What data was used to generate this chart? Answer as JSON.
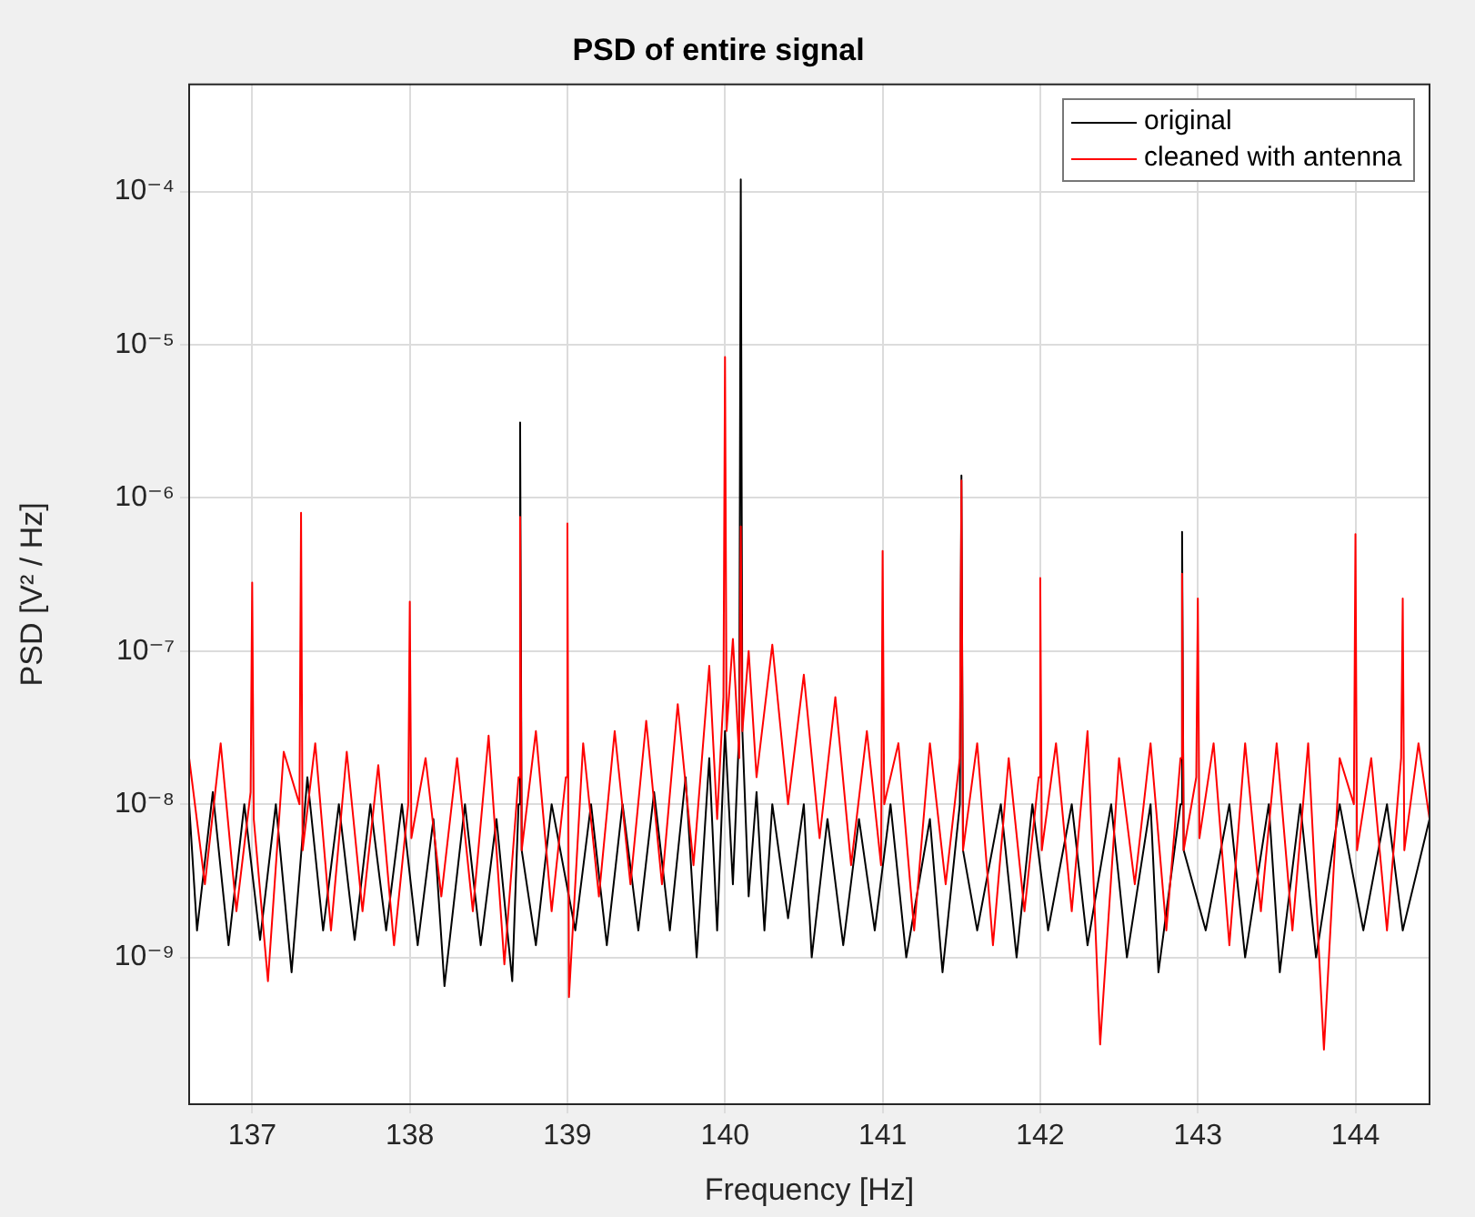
{
  "chart_data": {
    "type": "line",
    "title": "PSD of entire signal",
    "xlabel": "Frequency [Hz]",
    "ylabel": "PSD [V² / Hz]",
    "log": "y",
    "grid": true,
    "legend": "top right",
    "xlim": [
      136.6,
      144.47
    ],
    "xticks": [
      137,
      138,
      139,
      140,
      141,
      142,
      143,
      144
    ],
    "ylim": [
      1.1e-10,
      0.0005
    ],
    "yticks": [
      {
        "value": 1e-09,
        "label": "10⁻⁹"
      },
      {
        "value": 1e-08,
        "label": "10⁻⁸"
      },
      {
        "value": 1e-07,
        "label": "10⁻⁷"
      },
      {
        "value": 1e-06,
        "label": "10⁻⁶"
      },
      {
        "value": 1e-05,
        "label": "10⁻⁵"
      },
      {
        "value": 0.0001,
        "label": "10⁻⁴"
      }
    ],
    "series": [
      {
        "name": "original",
        "color": "#000000",
        "x": [
          136.6,
          136.65,
          136.75,
          136.85,
          136.95,
          137.05,
          137.15,
          137.25,
          137.35,
          137.45,
          137.55,
          137.65,
          137.75,
          137.85,
          137.95,
          138.05,
          138.15,
          138.22,
          138.35,
          138.45,
          138.55,
          138.65,
          138.69,
          138.7,
          138.71,
          138.8,
          138.9,
          139.05,
          139.15,
          139.25,
          139.35,
          139.45,
          139.55,
          139.65,
          139.75,
          139.82,
          139.9,
          139.95,
          140.0,
          140.05,
          140.09,
          140.1,
          140.11,
          140.15,
          140.2,
          140.25,
          140.3,
          140.4,
          140.5,
          140.55,
          140.65,
          140.75,
          140.85,
          140.95,
          141.05,
          141.15,
          141.3,
          141.38,
          141.49,
          141.5,
          141.51,
          141.6,
          141.75,
          141.85,
          141.95,
          142.05,
          142.2,
          142.3,
          142.45,
          142.55,
          142.7,
          142.75,
          142.89,
          142.9,
          142.91,
          143.05,
          143.2,
          143.3,
          143.45,
          143.52,
          143.65,
          143.75,
          143.9,
          144.05,
          144.2,
          144.3,
          144.47
        ],
        "values": [
          1e-08,
          1.5e-09,
          1.2e-08,
          1.2e-09,
          1e-08,
          1.3e-09,
          1e-08,
          8e-10,
          1.5e-08,
          1.5e-09,
          1e-08,
          1.3e-09,
          1e-08,
          1.5e-09,
          1e-08,
          1.2e-09,
          8e-09,
          6.5e-10,
          1e-08,
          1.2e-09,
          8e-09,
          7e-10,
          1e-08,
          3.1e-06,
          5e-09,
          1.2e-09,
          1e-08,
          1.5e-09,
          1e-08,
          1.2e-09,
          1e-08,
          1.5e-09,
          1.2e-08,
          1.5e-09,
          1.5e-08,
          1e-09,
          2e-08,
          1.5e-09,
          3e-08,
          3e-09,
          3e-08,
          0.00012,
          3e-08,
          2.5e-09,
          1.2e-08,
          1.5e-09,
          1e-08,
          1.8e-09,
          1e-08,
          1e-09,
          8e-09,
          1.2e-09,
          8e-09,
          1.5e-09,
          1e-08,
          1e-09,
          8e-09,
          8e-10,
          1e-08,
          1.4e-06,
          5e-09,
          1.5e-09,
          1e-08,
          1e-09,
          1e-08,
          1.5e-09,
          1e-08,
          1.2e-09,
          1e-08,
          1e-09,
          1e-08,
          8e-10,
          1e-08,
          6e-07,
          5e-09,
          1.5e-09,
          1e-08,
          1e-09,
          1e-08,
          8e-10,
          1e-08,
          1e-09,
          1e-08,
          1.5e-09,
          1e-08,
          1.5e-09,
          8e-09
        ]
      },
      {
        "name": "cleaned with antenna",
        "color": "#ff0000",
        "x": [
          136.6,
          136.7,
          136.8,
          136.9,
          136.99,
          137.0,
          137.01,
          137.1,
          137.2,
          137.3,
          137.31,
          137.32,
          137.4,
          137.5,
          137.6,
          137.7,
          137.8,
          137.9,
          137.99,
          138.0,
          138.01,
          138.1,
          138.2,
          138.3,
          138.4,
          138.5,
          138.6,
          138.69,
          138.7,
          138.71,
          138.8,
          138.9,
          138.99,
          139.0,
          139.01,
          139.1,
          139.2,
          139.3,
          139.4,
          139.5,
          139.6,
          139.7,
          139.8,
          139.9,
          139.95,
          139.99,
          140.0,
          140.01,
          140.05,
          140.09,
          140.1,
          140.11,
          140.15,
          140.2,
          140.3,
          140.4,
          140.5,
          140.6,
          140.7,
          140.8,
          140.9,
          140.99,
          141.0,
          141.01,
          141.1,
          141.2,
          141.3,
          141.4,
          141.49,
          141.5,
          141.51,
          141.6,
          141.7,
          141.8,
          141.9,
          141.99,
          142.0,
          142.01,
          142.1,
          142.2,
          142.3,
          142.38,
          142.5,
          142.6,
          142.7,
          142.8,
          142.89,
          142.9,
          142.91,
          142.99,
          143.0,
          143.01,
          143.1,
          143.2,
          143.3,
          143.4,
          143.5,
          143.6,
          143.7,
          143.8,
          143.9,
          143.99,
          144.0,
          144.01,
          144.1,
          144.2,
          144.29,
          144.3,
          144.31,
          144.4,
          144.47
        ],
        "values": [
          2e-08,
          3e-09,
          2.5e-08,
          2e-09,
          1.2e-08,
          2.8e-07,
          8e-09,
          7e-10,
          2.2e-08,
          1e-08,
          8e-07,
          5e-09,
          2.5e-08,
          1.5e-09,
          2.2e-08,
          2e-09,
          1.8e-08,
          1.2e-09,
          1e-08,
          2.1e-07,
          6e-09,
          2e-08,
          2.5e-09,
          2e-08,
          2e-09,
          2.8e-08,
          9e-10,
          1.5e-08,
          7.5e-07,
          5e-09,
          3e-08,
          2e-09,
          1.5e-08,
          6.8e-07,
          5.5e-10,
          2.5e-08,
          2.5e-09,
          3e-08,
          3e-09,
          3.5e-08,
          3e-09,
          4.5e-08,
          4e-09,
          8e-08,
          8e-09,
          5e-08,
          8.3e-06,
          3e-08,
          1.2e-07,
          2e-08,
          6.5e-07,
          3e-08,
          1e-07,
          1.5e-08,
          1.1e-07,
          1e-08,
          7e-08,
          6e-09,
          5e-08,
          4e-09,
          3e-08,
          4e-09,
          4.5e-07,
          1e-08,
          2.5e-08,
          1.5e-09,
          2.5e-08,
          3e-09,
          2e-08,
          1.3e-06,
          5e-09,
          2.5e-08,
          1.2e-09,
          2e-08,
          2e-09,
          1.5e-08,
          3e-07,
          5e-09,
          2.5e-08,
          2e-09,
          3e-08,
          2.7e-10,
          2e-08,
          3e-09,
          2.5e-08,
          1.5e-09,
          2e-08,
          3.2e-07,
          5e-09,
          1.5e-08,
          2.2e-07,
          6e-09,
          2.5e-08,
          1.2e-09,
          2.5e-08,
          2e-09,
          2.5e-08,
          1.5e-09,
          2.5e-08,
          2.5e-10,
          2e-08,
          1e-08,
          5.8e-07,
          5e-09,
          2e-08,
          1.5e-09,
          2e-08,
          2.2e-07,
          5e-09,
          2.5e-08,
          8e-09
        ]
      }
    ]
  }
}
